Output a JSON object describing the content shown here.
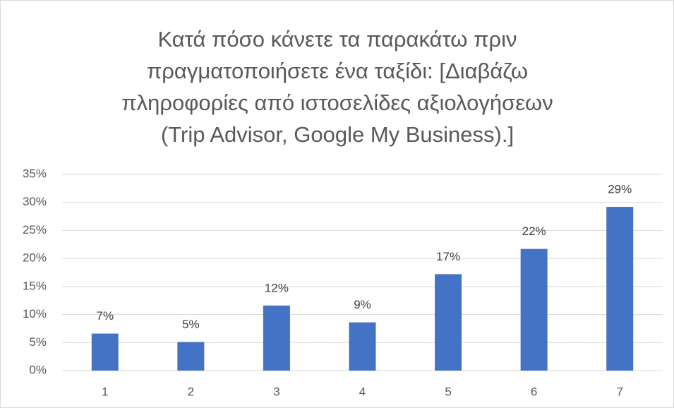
{
  "chart_data": {
    "type": "bar",
    "title": [
      "Κατά πόσο κάνετε τα παρακάτω πριν",
      "πραγματοποιήσετε ένα ταξίδι: [Διαβάζω",
      "πληροφορίες από ιστοσελίδες αξιολογήσεων",
      "(Trip Advisor, Google My Business).]"
    ],
    "categories": [
      "1",
      "2",
      "3",
      "4",
      "5",
      "6",
      "7"
    ],
    "values": [
      6.6,
      5.1,
      11.6,
      8.6,
      17.2,
      21.7,
      29.2
    ],
    "value_labels": [
      "7%",
      "5%",
      "12%",
      "9%",
      "17%",
      "22%",
      "29%"
    ],
    "color": "#4472c4",
    "ylim": [
      0,
      35
    ],
    "yticks": [
      {
        "value": 0,
        "label": "0%"
      },
      {
        "value": 5,
        "label": "5%"
      },
      {
        "value": 10,
        "label": "10%"
      },
      {
        "value": 15,
        "label": "15%"
      },
      {
        "value": 20,
        "label": "20%"
      },
      {
        "value": 25,
        "label": "25%"
      },
      {
        "value": 30,
        "label": "30%"
      },
      {
        "value": 35,
        "label": "35%"
      }
    ],
    "grid": true
  }
}
